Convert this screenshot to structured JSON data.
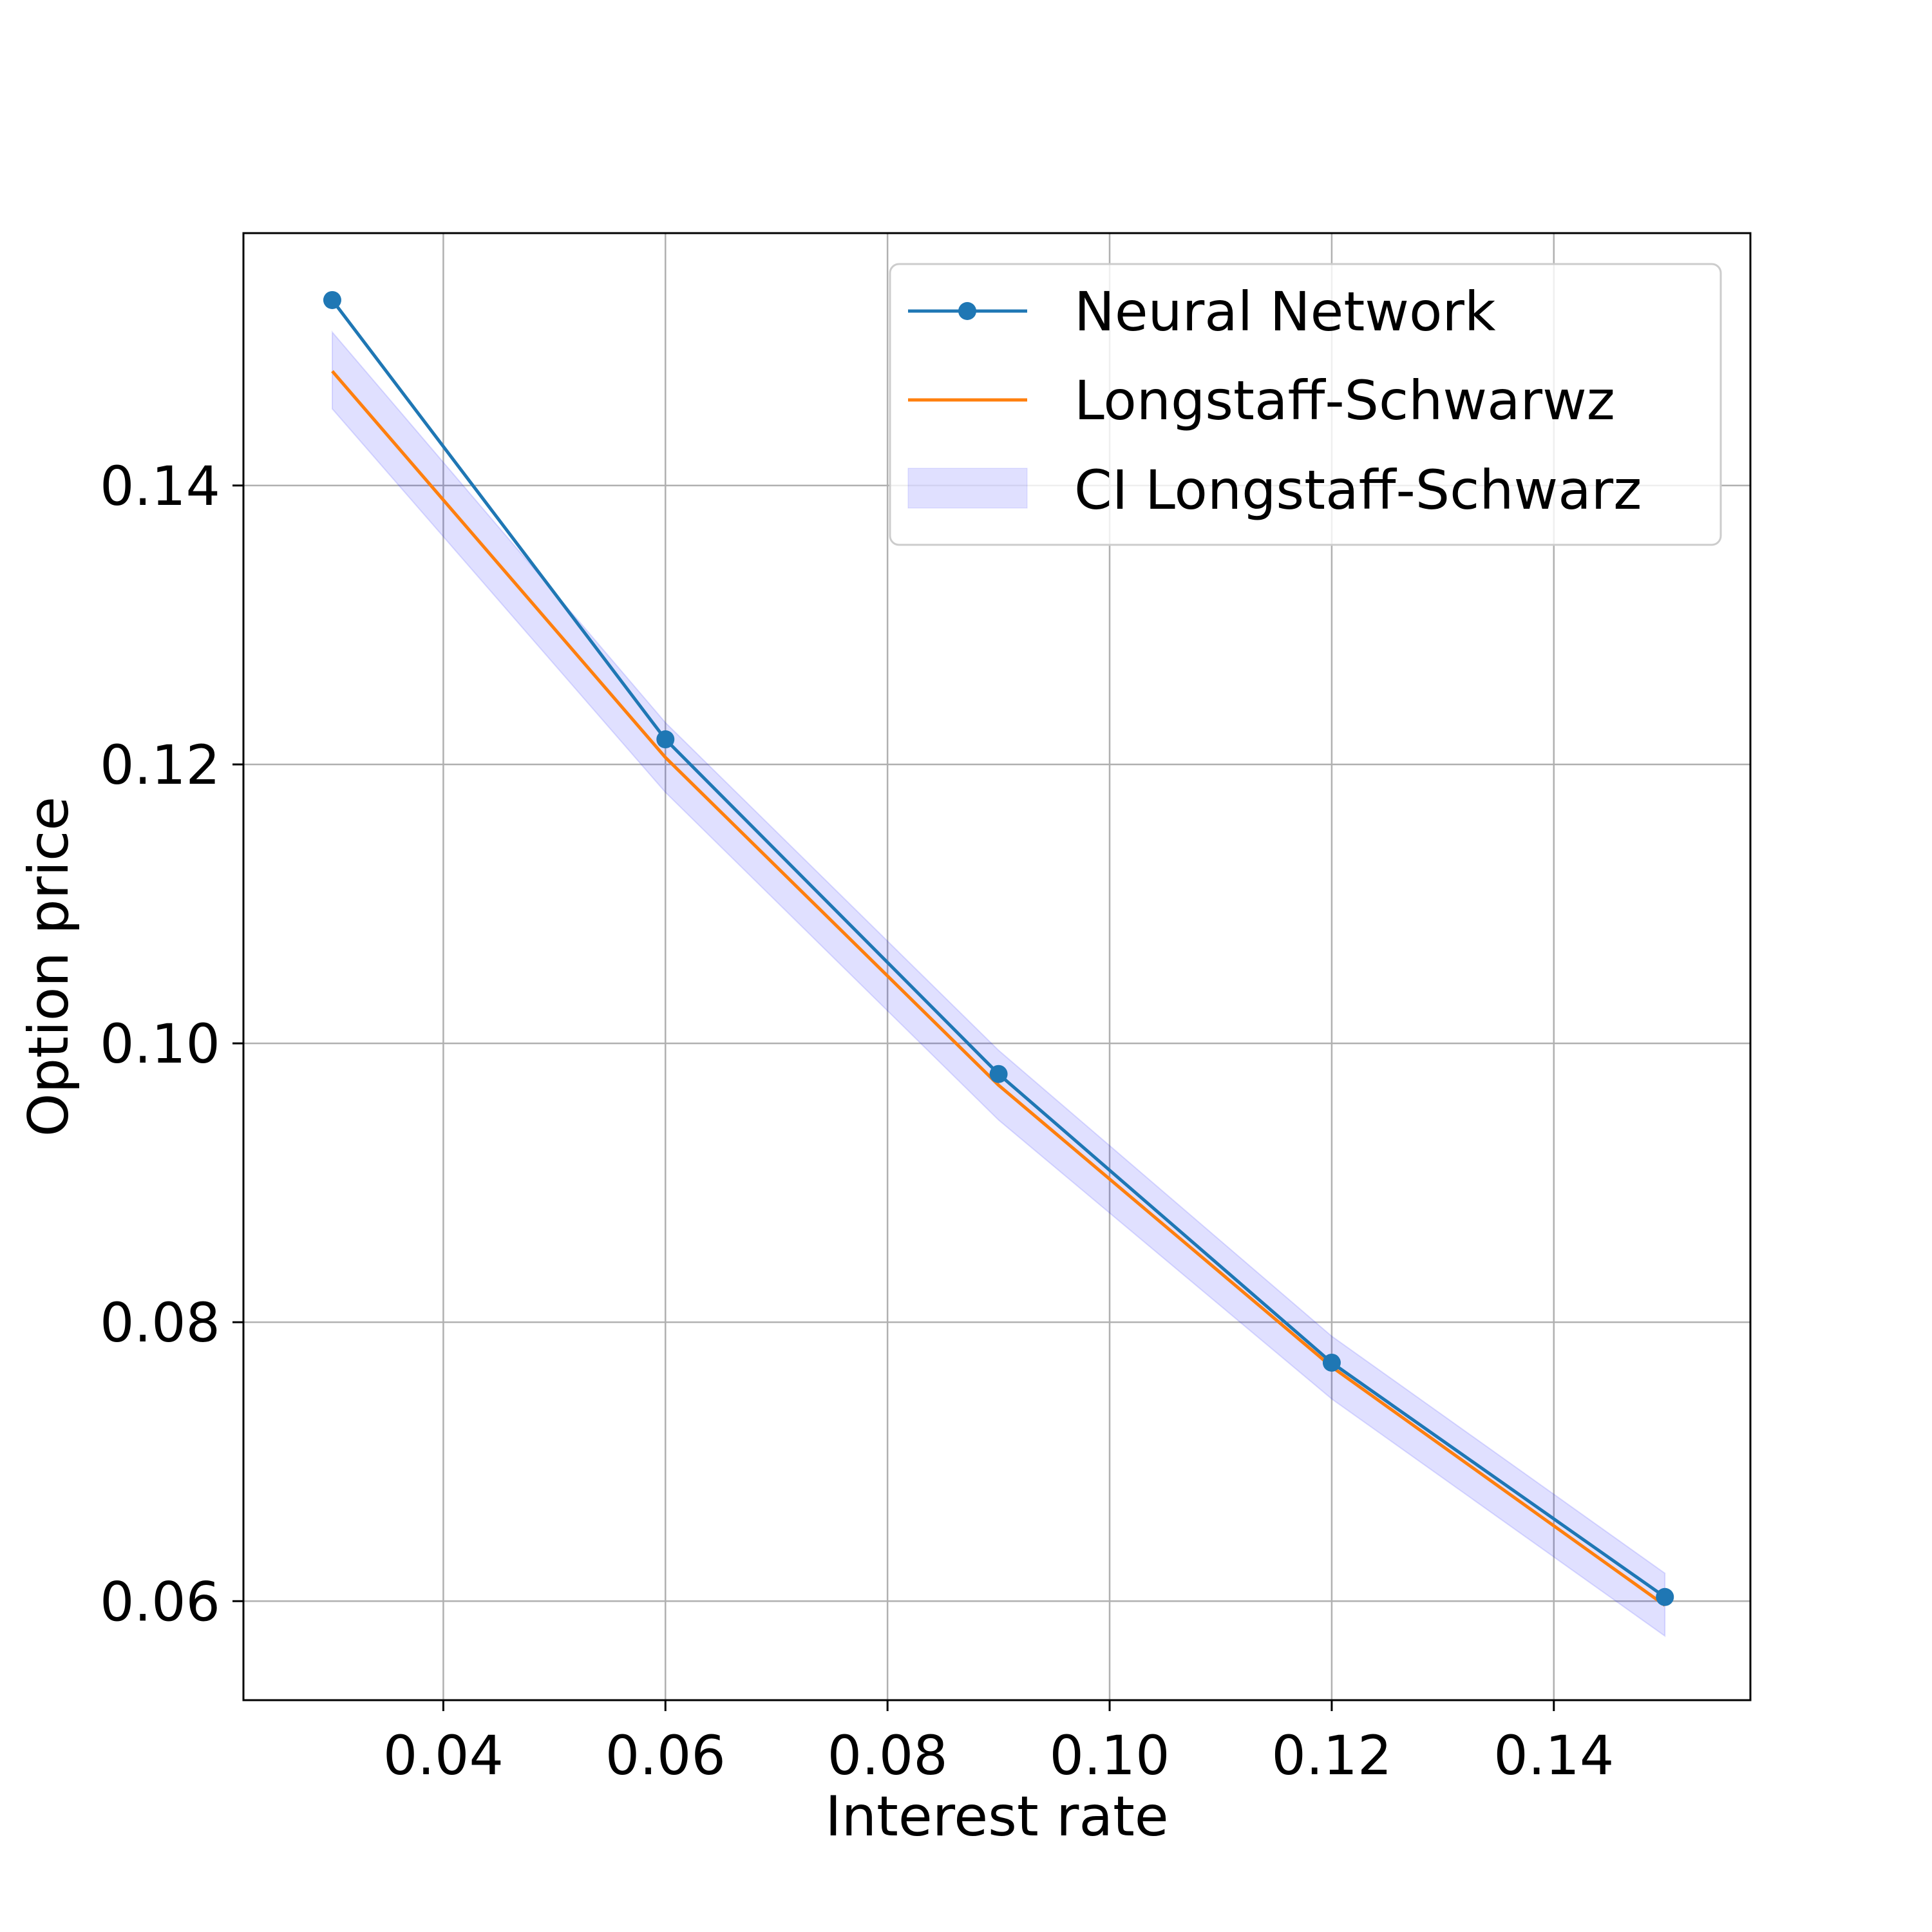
{
  "chart_data": {
    "type": "line",
    "title": "",
    "xlabel": "Interest rate",
    "ylabel": "Option price",
    "xlim": [
      0.022,
      0.1577
    ],
    "ylim": [
      0.0529,
      0.1581
    ],
    "grid": true,
    "legend_position": "top-right",
    "x_ticks": [
      0.04,
      0.06,
      0.08,
      0.1,
      0.12,
      0.14
    ],
    "x_tick_labels": [
      "0.04",
      "0.06",
      "0.08",
      "0.10",
      "0.12",
      "0.14"
    ],
    "y_ticks": [
      0.06,
      0.08,
      0.1,
      0.12,
      0.14
    ],
    "y_tick_labels": [
      "0.06",
      "0.08",
      "0.10",
      "0.12",
      "0.14"
    ],
    "x": [
      0.03,
      0.06,
      0.09,
      0.12,
      0.15
    ],
    "series": [
      {
        "name": "Neural Network",
        "values": [
          0.1533,
          0.1218,
          0.0978,
          0.0771,
          0.0603
        ],
        "color": "#1f77b4",
        "marker": "circle"
      },
      {
        "name": "Longstaff-Schwarwz",
        "values": [
          0.1482,
          0.1205,
          0.097,
          0.0768,
          0.0597
        ],
        "color": "#ff7f0e",
        "marker": "none"
      }
    ],
    "band": {
      "name": "CI Longstaff-Schwarz",
      "lower": [
        0.1455,
        0.118,
        0.0945,
        0.0745,
        0.0575
      ],
      "upper": [
        0.151,
        0.123,
        0.0995,
        0.079,
        0.062
      ],
      "color": "#0000ff",
      "opacity": 0.12
    }
  }
}
